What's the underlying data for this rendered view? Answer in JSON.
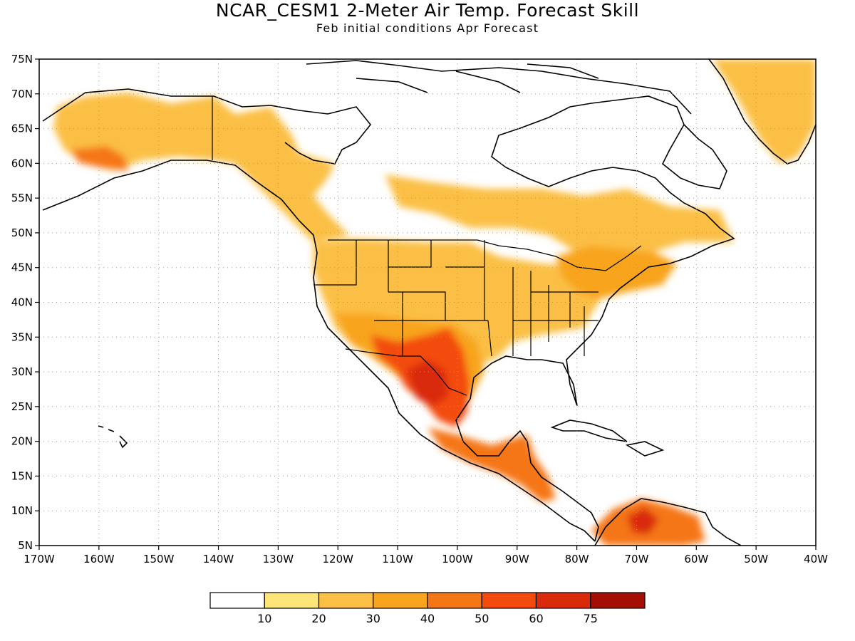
{
  "title": "NCAR_CESM1 2-Meter Air Temp. Forecast Skill",
  "subtitle": "Feb initial conditions  Apr Forecast",
  "map": {
    "lon_range": [
      -170,
      -40
    ],
    "lat_range": [
      5,
      75
    ],
    "lon_ticks": [
      "170W",
      "160W",
      "150W",
      "140W",
      "130W",
      "120W",
      "110W",
      "100W",
      "90W",
      "80W",
      "70W",
      "60W",
      "50W",
      "40W"
    ],
    "lat_ticks": [
      "5N",
      "10N",
      "15N",
      "20N",
      "25N",
      "30N",
      "35N",
      "40N",
      "45N",
      "50N",
      "55N",
      "60N",
      "65N",
      "70N",
      "75N"
    ],
    "grid": "dotted"
  },
  "colorbar": {
    "colors": [
      "#ffffff",
      "#fde57a",
      "#fbbf45",
      "#f8a41f",
      "#f57614",
      "#f34b0e",
      "#d92a0a",
      "#a50e05"
    ],
    "labels": [
      "10",
      "20",
      "30",
      "40",
      "50",
      "60",
      "75"
    ]
  }
}
